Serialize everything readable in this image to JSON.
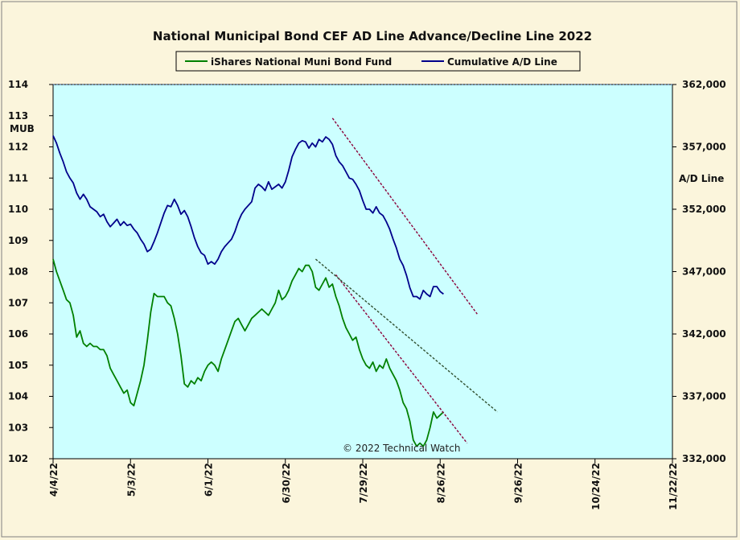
{
  "chart_data": {
    "type": "line",
    "title": "National Municipal Bond CEF AD Line Advance/Decline Line 2022",
    "credit": "© 2022 Technical Watch",
    "colors": {
      "background": "#fbf5dc",
      "plot": "#ccffff",
      "fund": "#008000",
      "ad": "#00008b",
      "trend": "#8b0038",
      "trend_alt": "#2f4f2f"
    },
    "left_axis": {
      "label": "MUB",
      "min": 102,
      "max": 114,
      "ticks": [
        "102",
        "103",
        "104",
        "105",
        "106",
        "107",
        "108",
        "109",
        "110",
        "111",
        "112",
        "113",
        "114"
      ]
    },
    "right_axis": {
      "label": "A/D Line",
      "min": 332000,
      "max": 362000,
      "ticks": [
        "332,000",
        "337,000",
        "342,000",
        "347,000",
        "352,000",
        "357,000",
        "362,000"
      ]
    },
    "x_axis": {
      "ticks": [
        "4/4/22",
        "5/3/22",
        "6/1/22",
        "6/30/22",
        "7/29/22",
        "8/26/22",
        "9/26/22",
        "10/24/22",
        "11/22/22"
      ]
    },
    "legend_position": "top-center",
    "series": [
      {
        "name": "iShares National Muni Bond Fund",
        "axis": "left",
        "color": "#008000",
        "values": [
          108.4,
          108.0,
          107.7,
          107.4,
          107.1,
          107.0,
          106.6,
          105.9,
          106.1,
          105.7,
          105.6,
          105.7,
          105.6,
          105.6,
          105.5,
          105.5,
          105.3,
          104.9,
          104.7,
          104.5,
          104.3,
          104.1,
          104.2,
          103.8,
          103.7,
          104.1,
          104.5,
          105.0,
          105.8,
          106.7,
          107.3,
          107.2,
          107.2,
          107.2,
          107.0,
          106.9,
          106.5,
          106.0,
          105.3,
          104.4,
          104.3,
          104.5,
          104.4,
          104.6,
          104.5,
          104.8,
          105.0,
          105.1,
          105.0,
          104.8,
          105.2,
          105.5,
          105.8,
          106.1,
          106.4,
          106.5,
          106.3,
          106.1,
          106.3,
          106.5,
          106.6,
          106.7,
          106.8,
          106.7,
          106.6,
          106.8,
          107.0,
          107.4,
          107.1,
          107.2,
          107.4,
          107.7,
          107.9,
          108.1,
          108.0,
          108.2,
          108.2,
          108.0,
          107.5,
          107.4,
          107.6,
          107.8,
          107.5,
          107.6,
          107.2,
          106.9,
          106.5,
          106.2,
          106.0,
          105.8,
          105.9,
          105.5,
          105.2,
          105.0,
          104.9,
          105.1,
          104.8,
          105.0,
          104.9,
          105.2,
          104.9,
          104.7,
          104.5,
          104.2,
          103.8,
          103.6,
          103.2,
          102.6,
          102.4,
          102.5,
          102.4,
          102.6,
          103.0,
          103.5,
          103.3,
          103.4,
          103.5
        ]
      },
      {
        "name": "Cumulative A/D Line",
        "axis": "right",
        "color": "#00008b",
        "values": [
          357.9,
          357.3,
          356.5,
          355.8,
          355.0,
          354.5,
          354.1,
          353.3,
          352.8,
          353.2,
          352.8,
          352.2,
          352.0,
          351.8,
          351.4,
          351.6,
          351.0,
          350.6,
          350.9,
          351.2,
          350.7,
          351.0,
          350.7,
          350.8,
          350.4,
          350.1,
          349.6,
          349.2,
          348.6,
          348.8,
          349.4,
          350.1,
          350.9,
          351.7,
          352.3,
          352.2,
          352.8,
          352.3,
          351.6,
          351.9,
          351.4,
          350.6,
          349.7,
          349.0,
          348.5,
          348.3,
          347.6,
          347.8,
          347.6,
          348.0,
          348.6,
          349.0,
          349.3,
          349.6,
          350.2,
          351.0,
          351.6,
          352.0,
          352.3,
          352.6,
          353.7,
          354.0,
          353.8,
          353.5,
          354.2,
          353.6,
          353.8,
          354.0,
          353.7,
          354.2,
          355.1,
          356.2,
          356.8,
          357.3,
          357.5,
          357.4,
          356.9,
          357.3,
          357.0,
          357.6,
          357.4,
          357.8,
          357.6,
          357.2,
          356.3,
          355.8,
          355.5,
          355.0,
          354.5,
          354.4,
          354.0,
          353.5,
          352.7,
          352.0,
          352.0,
          351.7,
          352.2,
          351.7,
          351.5,
          351.0,
          350.4,
          349.6,
          348.9,
          348.0,
          347.5,
          346.7,
          345.7,
          345.0,
          345.0,
          344.8,
          345.5,
          345.2,
          345.0,
          345.8,
          345.8,
          345.4,
          345.2
        ]
      }
    ],
    "trendlines": [
      {
        "series": "Cumulative A/D Line",
        "from": [
          83,
          359.3
        ],
        "to": [
          126,
          343.6
        ]
      },
      {
        "series": "iShares National Muni Bond Fund",
        "from": [
          84,
          107.9
        ],
        "to": [
          123,
          102.5
        ]
      },
      {
        "series": "iShares National Muni Bond Fund",
        "from": [
          78,
          108.4
        ],
        "to": [
          132,
          103.5
        ]
      }
    ]
  }
}
